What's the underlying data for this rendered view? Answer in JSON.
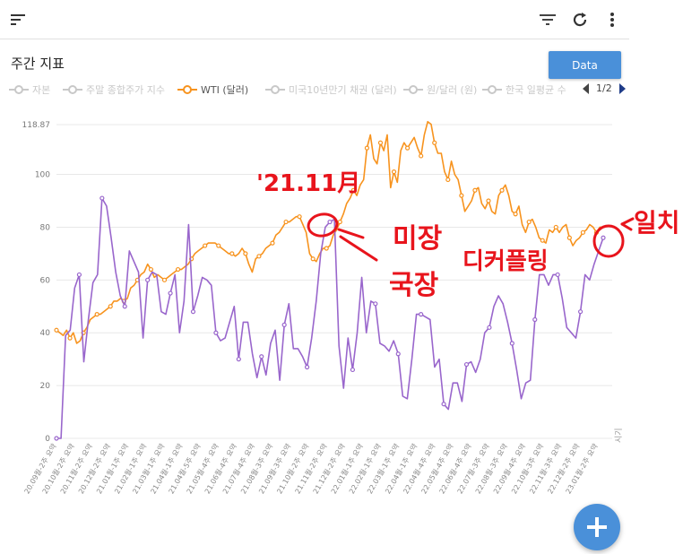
{
  "header": {
    "menu_icon": "hamburger-sort-icon",
    "filter_icon": "filter-icon",
    "refresh_icon": "refresh-icon",
    "more_icon": "more-vert-icon"
  },
  "page": {
    "title": "주간 지표",
    "data_button": "Data"
  },
  "legend": {
    "items": [
      {
        "label": "자본",
        "active": false
      },
      {
        "label": "주말 종합주가 지수",
        "active": false
      },
      {
        "label": "WTI (달러)",
        "active": true
      },
      {
        "label": "미국10년만기 채권 (달러)",
        "active": false
      },
      {
        "label": "원/달러 (원)",
        "active": false
      },
      {
        "label": "한국 일평균 수",
        "active": false
      }
    ],
    "page": "1/2"
  },
  "annotations": {
    "date_note": "'21.11月",
    "note_a": "미장",
    "note_b": "국장",
    "note_c": "디커플링",
    "note_d": "일치"
  },
  "colors": {
    "accent": "#4a90d9",
    "wti": "#f7931e",
    "second": "#9966cc",
    "annotation": "#e8141c"
  },
  "chart_data": {
    "type": "line",
    "x_axis_title": "시기",
    "ylim": [
      0,
      118.87
    ],
    "y_ticks": [
      "0",
      "20",
      "40",
      "60",
      "80",
      "100",
      "118.87"
    ],
    "x_tick_labels": [
      "20.09월-2주 요약",
      "20.10월-2주 요약",
      "20.11월-2주 요약",
      "20.12월-2주 요약",
      "21.01월-1주 요약",
      "21.02월-1주 요약",
      "21.03월-1주 요약",
      "21.04월-1주 요약",
      "21.04월-5주 요약",
      "21.05월-4주 요약",
      "21.06월-4주 요약",
      "21.07월-4주 요약",
      "21.08월-3주 요약",
      "21.09월-3주 요약",
      "21.10월-2주 요약",
      "21.11월-2주 요약",
      "21.12월-2주 요약",
      "22.01월-1주 요약",
      "22.02월-1주 요약",
      "22.03월-1주 요약",
      "22.04월-1주 요약",
      "22.04월-4주 요약",
      "22.05월-4주 요약",
      "22.06월-4주 요약",
      "22.07월-3주 요약",
      "22.08월-3주 요약",
      "22.09월-4주 요약",
      "22.10월-3주 요약",
      "22.11월-3주 요약",
      "22.12월-2주 요약",
      "23.01월-2주 요약"
    ],
    "grid": true,
    "series": [
      {
        "name": "WTI (달러)",
        "color": "#f7931e",
        "values": [
          41,
          40,
          39,
          41,
          38,
          40,
          36,
          37,
          40,
          42,
          45,
          46,
          47,
          47,
          48,
          49,
          50,
          52,
          52,
          53,
          52,
          53,
          57,
          58,
          60,
          62,
          63,
          66,
          64,
          61,
          62,
          61,
          60,
          61,
          62,
          63,
          64,
          64,
          65,
          66,
          68,
          70,
          71,
          72,
          73,
          74,
          74,
          74,
          73,
          72,
          71,
          70,
          70,
          69,
          70,
          72,
          70,
          66,
          63,
          68,
          69,
          70,
          72,
          73,
          74,
          77,
          78,
          80,
          82,
          82,
          83,
          84,
          84,
          81,
          78,
          70,
          68,
          67,
          70,
          72,
          72,
          73,
          77,
          79,
          82,
          85,
          89,
          91,
          94,
          92,
          96,
          98,
          110,
          115,
          106,
          104,
          112,
          109,
          115,
          95,
          101,
          97,
          109,
          112,
          110,
          112,
          114,
          110,
          107,
          115,
          120,
          119,
          112,
          108,
          108,
          101,
          98,
          105,
          100,
          98,
          92,
          86,
          88,
          90,
          94,
          95,
          89,
          87,
          90,
          86,
          85,
          92,
          94,
          96,
          92,
          86,
          85,
          88,
          81,
          78,
          82,
          83,
          80,
          76,
          75,
          74,
          79,
          78,
          80,
          78,
          80,
          81,
          76,
          73,
          75,
          76,
          78,
          79,
          81,
          80,
          78,
          80,
          80
        ]
      },
      {
        "name": "",
        "color": "#9966cc",
        "values": [
          0,
          0,
          39,
          41,
          57,
          62,
          29,
          45,
          59,
          62,
          91,
          88,
          76,
          63,
          54,
          50,
          71,
          67,
          63,
          38,
          60,
          63,
          62,
          48,
          47,
          55,
          62,
          40,
          52,
          81,
          48,
          54,
          61,
          60,
          58,
          40,
          37,
          38,
          44,
          50,
          30,
          44,
          44,
          32,
          23,
          31,
          24,
          36,
          41,
          22,
          43,
          51,
          34,
          34,
          31,
          27,
          38,
          52,
          70,
          80,
          82,
          83,
          35,
          19,
          38,
          26,
          40,
          61,
          40,
          52,
          51,
          36,
          35,
          33,
          37,
          32,
          16,
          15,
          30,
          47,
          47,
          46,
          45,
          27,
          30,
          13,
          11,
          21,
          21,
          14,
          28,
          29,
          25,
          30,
          40,
          42,
          50,
          54,
          51,
          44,
          36,
          26,
          15,
          21,
          22,
          45,
          62,
          62,
          58,
          62,
          62,
          53,
          42,
          40,
          38,
          48,
          62,
          60,
          66,
          71,
          76
        ]
      }
    ]
  }
}
